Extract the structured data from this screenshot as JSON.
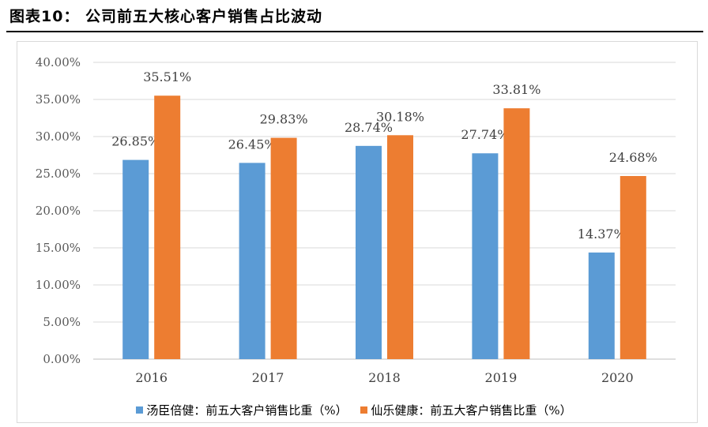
{
  "figure": {
    "title": "图表10：  公司前五大核心客户销售占比波动"
  },
  "chart_data": {
    "type": "bar",
    "title": "",
    "xlabel": "",
    "ylabel": "",
    "categories": [
      "2016",
      "2017",
      "2018",
      "2019",
      "2020"
    ],
    "ylim": [
      0,
      40
    ],
    "yticks": [
      "0.00%",
      "5.00%",
      "10.00%",
      "15.00%",
      "20.00%",
      "25.00%",
      "30.00%",
      "35.00%",
      "40.00%"
    ],
    "grid": true,
    "legend_position": "bottom",
    "series": [
      {
        "name": "汤臣倍健：前五大客户销售比重（%）",
        "color": "#5b9bd5",
        "values": [
          26.85,
          26.45,
          28.74,
          27.74,
          14.37
        ],
        "labels": [
          "26.85%",
          "26.45%",
          "28.74%",
          "27.74%",
          "14.37%"
        ]
      },
      {
        "name": "仙乐健康：前五大客户销售比重（%）",
        "color": "#ed7d31",
        "values": [
          35.51,
          29.83,
          30.18,
          33.81,
          24.68
        ],
        "labels": [
          "35.51%",
          "29.83%",
          "30.18%",
          "33.81%",
          "24.68%"
        ]
      }
    ]
  }
}
